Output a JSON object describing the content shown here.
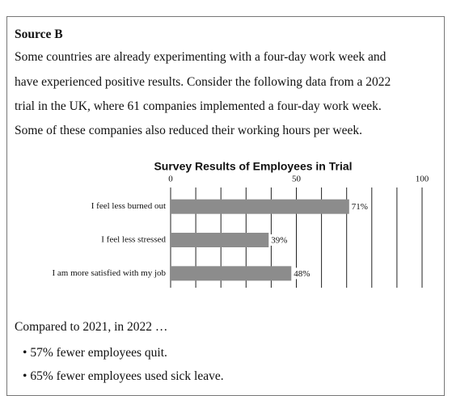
{
  "source": "Source B",
  "paragraph_lines": [
    "Some countries are already experimenting with a four-day work week and",
    "have experienced positive results.  Consider the following data from a 2022",
    "trial in the UK, where 61 companies implemented a four-day work week.",
    "Some of these companies also reduced their working hours per week."
  ],
  "chart_data": {
    "type": "bar",
    "orientation": "horizontal",
    "title": "Survey Results of Employees in Trial",
    "categories": [
      "I feel less burned out",
      "I feel less stressed",
      "I am more satisfied with my job"
    ],
    "values": [
      71,
      39,
      48
    ],
    "value_labels": [
      "71%",
      "39%",
      "48%"
    ],
    "color": "#8c8c8c",
    "xlim": [
      0,
      100
    ],
    "xticks": [
      0,
      50,
      100
    ],
    "minor_xticks": [
      10,
      20,
      30,
      40,
      60,
      70,
      80,
      90
    ],
    "grid": true
  },
  "comparison": "Compared to 2021, in 2022 …",
  "bullets": [
    "57% fewer employees quit.",
    "65% fewer employees used sick leave."
  ]
}
